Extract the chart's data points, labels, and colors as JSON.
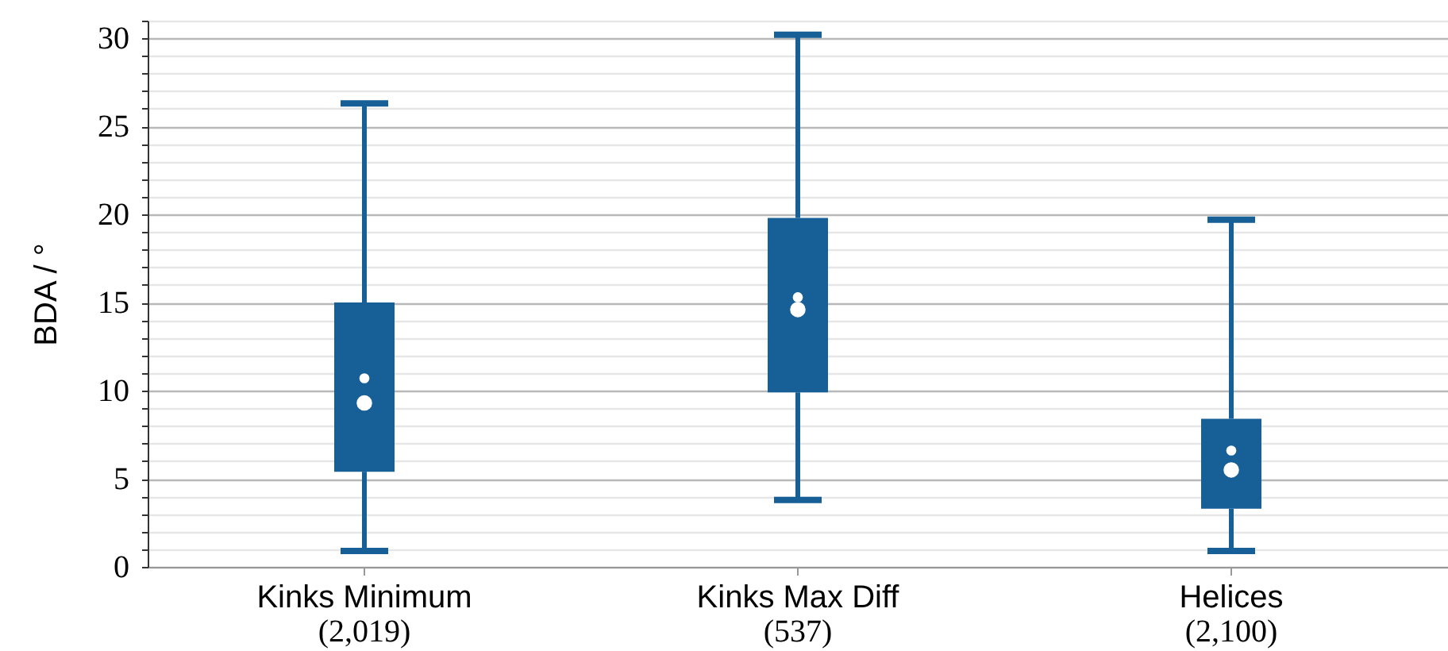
{
  "chart_data": {
    "type": "box",
    "ylabel": "BDA / °",
    "categories": [
      "Kinks Minimum\n(2,019)",
      "Kinks Max Diff\n(537)",
      "Helices\n(2,100)"
    ],
    "series": [
      {
        "color": "#165f97",
        "boxes": [
          {
            "low": 0.9,
            "q1": 5.4,
            "median": 9.3,
            "q3": 15.0,
            "high": 26.3,
            "mean": 10.7
          },
          {
            "low": 3.8,
            "q1": 9.9,
            "median": 14.6,
            "q3": 19.8,
            "high": 30.2,
            "mean": 15.3
          },
          {
            "low": 0.9,
            "q1": 3.3,
            "median": 5.5,
            "q3": 8.4,
            "high": 19.7,
            "mean": 6.6
          }
        ]
      }
    ],
    "ylim": [
      0,
      31
    ],
    "yticks": [
      0,
      {
        "value": 1,
        "label": null
      },
      {
        "value": 2,
        "label": null
      },
      {
        "value": 3,
        "label": null
      },
      {
        "value": 4,
        "label": null
      },
      5,
      {
        "value": 6,
        "label": null
      },
      {
        "value": 7,
        "label": null
      },
      {
        "value": 8,
        "label": null
      },
      {
        "value": 9,
        "label": null
      },
      10,
      {
        "value": 11,
        "label": null
      },
      {
        "value": 12,
        "label": null
      },
      {
        "value": 13,
        "label": null
      },
      {
        "value": 14,
        "label": null
      },
      15,
      {
        "value": 16,
        "label": null
      },
      {
        "value": 17,
        "label": null
      },
      {
        "value": 18,
        "label": null
      },
      {
        "value": 19,
        "label": null
      },
      20,
      {
        "value": 21,
        "label": null
      },
      {
        "value": 22,
        "label": null
      },
      {
        "value": 23,
        "label": null
      },
      {
        "value": 24,
        "label": null
      },
      25,
      {
        "value": 26,
        "label": null
      },
      {
        "value": 27,
        "label": null
      },
      {
        "value": 28,
        "label": null
      },
      {
        "value": 29,
        "label": null
      },
      30,
      {
        "value": 31,
        "label": null
      }
    ],
    "grid": "y"
  }
}
